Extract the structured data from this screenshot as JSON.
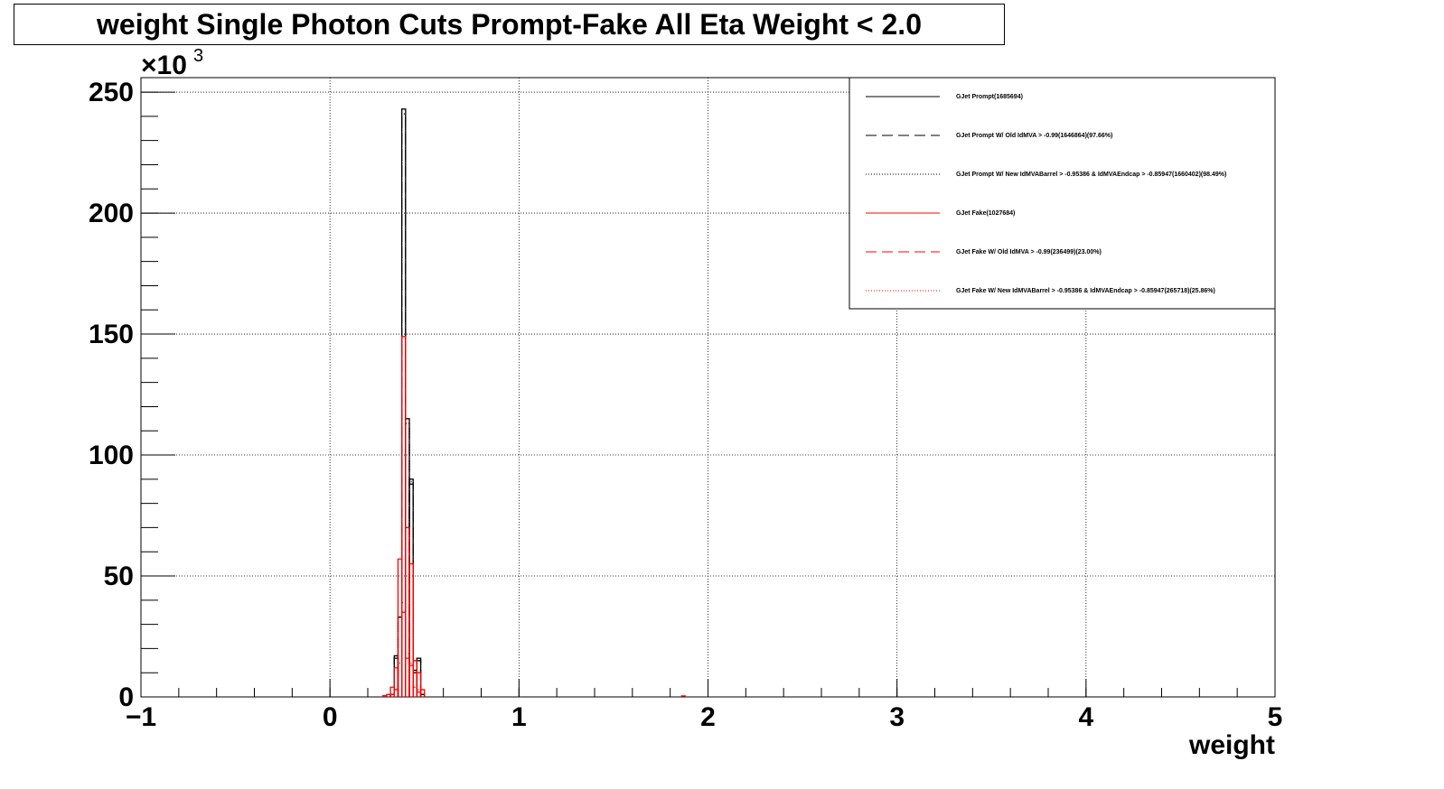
{
  "chart_data": {
    "type": "histogram",
    "title": "weight Single Photon Cuts Prompt-Fake All Eta Weight < 2.0",
    "xlabel": "weight",
    "ylabel": "",
    "y_exponent_label": "×10",
    "y_exponent_power": "3",
    "xlim": [
      -1,
      5
    ],
    "ylim": [
      0,
      256
    ],
    "grid": true,
    "legend_position": "top-right",
    "x_ticks": [
      {
        "value": -1,
        "label": "−1"
      },
      {
        "value": 0,
        "label": "0"
      },
      {
        "value": 1,
        "label": "1"
      },
      {
        "value": 2,
        "label": "2"
      },
      {
        "value": 3,
        "label": "3"
      },
      {
        "value": 4,
        "label": "4"
      },
      {
        "value": 5,
        "label": "5"
      }
    ],
    "y_ticks": [
      {
        "value": 0,
        "label": "0"
      },
      {
        "value": 50,
        "label": "50"
      },
      {
        "value": 100,
        "label": "100"
      },
      {
        "value": 150,
        "label": "150"
      },
      {
        "value": 200,
        "label": "200"
      },
      {
        "value": 250,
        "label": "250"
      }
    ],
    "bin_width": 0.02,
    "series": [
      {
        "name": "GJet Prompt(1685694)",
        "color": "#000000",
        "dash": "solid",
        "bins": [
          [
            0.32,
            1
          ],
          [
            0.34,
            17
          ],
          [
            0.36,
            33
          ],
          [
            0.38,
            243
          ],
          [
            0.4,
            115
          ],
          [
            0.42,
            90
          ],
          [
            0.44,
            11
          ],
          [
            0.46,
            16
          ],
          [
            0.48,
            1
          ]
        ]
      },
      {
        "name": "GJet Prompt W/ Old IdMVA > -0.99(1646864)(97.66%)",
        "color": "#000000",
        "dash": "long-dash",
        "bins": [
          [
            0.32,
            1
          ],
          [
            0.34,
            16
          ],
          [
            0.36,
            32
          ],
          [
            0.38,
            240
          ],
          [
            0.4,
            112
          ],
          [
            0.42,
            88
          ],
          [
            0.44,
            10
          ],
          [
            0.46,
            15
          ],
          [
            0.48,
            1
          ]
        ]
      },
      {
        "name": "GJet Prompt W/ New IdMVABarrel > -0.95386 & IdMVAEndcap > -0.85947(1660402)(98.49%)",
        "color": "#000000",
        "dash": "dotted",
        "bins": [
          [
            0.32,
            1
          ],
          [
            0.34,
            16
          ],
          [
            0.36,
            33
          ],
          [
            0.38,
            241
          ],
          [
            0.4,
            113
          ],
          [
            0.42,
            89
          ],
          [
            0.44,
            11
          ],
          [
            0.46,
            16
          ],
          [
            0.48,
            1
          ]
        ]
      },
      {
        "name": "GJet Fake(1027684)",
        "color": "#ff0000",
        "dash": "solid",
        "bins": [
          [
            0.28,
            0.5
          ],
          [
            0.3,
            1
          ],
          [
            0.32,
            4
          ],
          [
            0.34,
            12
          ],
          [
            0.36,
            57
          ],
          [
            0.38,
            149
          ],
          [
            0.4,
            70
          ],
          [
            0.42,
            55
          ],
          [
            0.44,
            15
          ],
          [
            0.46,
            10
          ],
          [
            0.48,
            3
          ],
          [
            1.86,
            0.4
          ]
        ]
      },
      {
        "name": "GJet Fake W/ Old IdMVA > -0.99(236499)(23.00%)",
        "color": "#ff0000",
        "dash": "long-dash",
        "bins": [
          [
            0.32,
            1
          ],
          [
            0.34,
            3
          ],
          [
            0.36,
            12
          ],
          [
            0.38,
            35
          ],
          [
            0.4,
            16
          ],
          [
            0.42,
            13
          ],
          [
            0.44,
            4
          ],
          [
            0.46,
            2
          ]
        ]
      },
      {
        "name": "GJet Fake W/ New IdMVABarrel > -0.95386 & IdMVAEndcap > -0.85947(265718)(25.86%)",
        "color": "#ff0000",
        "dash": "dotted",
        "bins": [
          [
            0.32,
            1
          ],
          [
            0.34,
            3
          ],
          [
            0.36,
            14
          ],
          [
            0.38,
            39
          ],
          [
            0.4,
            18
          ],
          [
            0.42,
            14
          ],
          [
            0.44,
            4
          ],
          [
            0.46,
            3
          ]
        ]
      }
    ]
  }
}
